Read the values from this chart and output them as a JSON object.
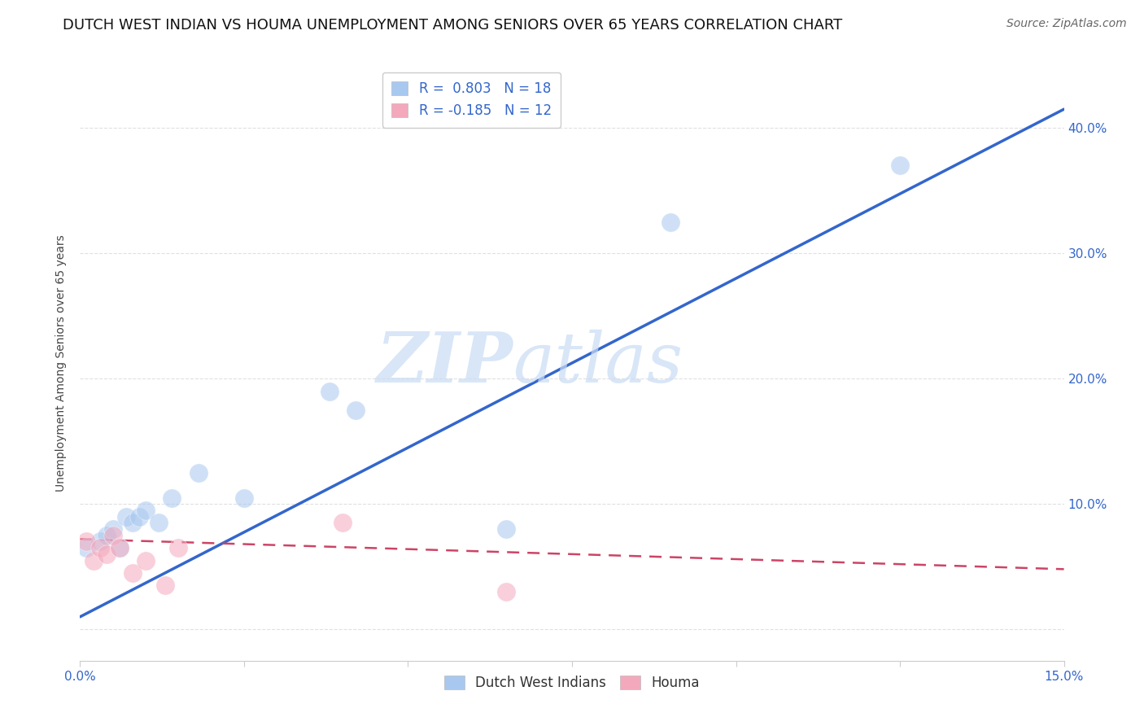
{
  "title": "DUTCH WEST INDIAN VS HOUMA UNEMPLOYMENT AMONG SENIORS OVER 65 YEARS CORRELATION CHART",
  "source": "Source: ZipAtlas.com",
  "ylabel": "Unemployment Among Seniors over 65 years",
  "xlim": [
    0.0,
    0.15
  ],
  "ylim": [
    -0.025,
    0.45
  ],
  "blue_color": "#A8C8F0",
  "pink_color": "#F4A8BC",
  "blue_line_color": "#3366CC",
  "pink_line_color": "#CC4466",
  "R_blue": 0.803,
  "N_blue": 18,
  "R_pink": -0.185,
  "N_pink": 12,
  "blue_scatter_x": [
    0.001,
    0.003,
    0.004,
    0.005,
    0.006,
    0.007,
    0.008,
    0.009,
    0.01,
    0.012,
    0.014,
    0.018,
    0.025,
    0.038,
    0.042,
    0.065,
    0.09,
    0.125
  ],
  "blue_scatter_y": [
    0.065,
    0.07,
    0.075,
    0.08,
    0.065,
    0.09,
    0.085,
    0.09,
    0.095,
    0.085,
    0.105,
    0.125,
    0.105,
    0.19,
    0.175,
    0.08,
    0.325,
    0.37
  ],
  "pink_scatter_x": [
    0.001,
    0.002,
    0.003,
    0.004,
    0.005,
    0.006,
    0.008,
    0.01,
    0.013,
    0.015,
    0.04,
    0.065
  ],
  "pink_scatter_y": [
    0.07,
    0.055,
    0.065,
    0.06,
    0.075,
    0.065,
    0.045,
    0.055,
    0.035,
    0.065,
    0.085,
    0.03
  ],
  "blue_line_x": [
    0.0,
    0.15
  ],
  "blue_line_y": [
    0.01,
    0.415
  ],
  "pink_line_x": [
    0.0,
    0.15
  ],
  "pink_line_y": [
    0.072,
    0.048
  ],
  "watermark_zip": "ZIP",
  "watermark_atlas": "atlas",
  "background_color": "#FFFFFF",
  "grid_color": "#DDDDDD",
  "scatter_size": 280,
  "scatter_alpha": 0.55,
  "title_fontsize": 13,
  "axis_label_fontsize": 10,
  "tick_fontsize": 11,
  "source_fontsize": 10,
  "legend_fontsize": 12,
  "xtick_positions": [
    0.0,
    0.025,
    0.05,
    0.075,
    0.1,
    0.125,
    0.15
  ],
  "xtick_labels": [
    "0.0%",
    "",
    "",
    "",
    "",
    "",
    "15.0%"
  ],
  "ytick_positions": [
    0.0,
    0.1,
    0.2,
    0.3,
    0.4
  ],
  "ytick_labels_right": [
    "",
    "10.0%",
    "20.0%",
    "30.0%",
    "40.0%"
  ]
}
